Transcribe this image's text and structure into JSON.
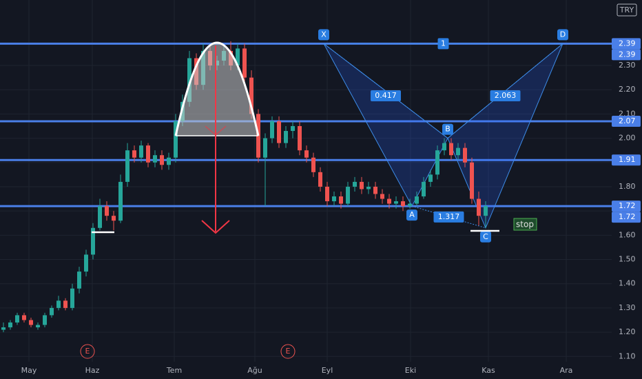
{
  "chart_data": {
    "type": "candlestick",
    "currency": "TRY",
    "x": [
      0,
      1,
      2,
      3,
      4,
      5,
      6,
      7,
      8,
      9,
      10,
      11,
      12,
      13,
      14,
      15,
      16,
      17,
      18,
      19,
      20,
      21,
      22,
      23,
      24,
      25,
      26,
      27,
      28,
      29,
      30,
      31,
      32,
      33,
      34,
      35,
      36,
      37,
      38,
      39,
      40,
      41,
      42,
      43,
      44,
      45,
      46,
      47,
      48,
      49,
      50,
      51,
      52,
      53,
      54,
      55,
      56,
      57,
      58,
      59,
      60,
      61,
      62,
      63,
      64,
      65,
      66,
      67,
      68,
      69,
      70
    ],
    "open": [
      1.21,
      1.22,
      1.24,
      1.27,
      1.25,
      1.22,
      1.23,
      1.27,
      1.3,
      1.33,
      1.3,
      1.38,
      1.45,
      1.52,
      1.63,
      1.72,
      1.68,
      1.66,
      1.82,
      1.95,
      1.92,
      1.97,
      1.9,
      1.93,
      1.89,
      1.92,
      2.07,
      2.15,
      2.33,
      2.22,
      2.36,
      2.3,
      2.32,
      2.36,
      2.3,
      2.37,
      2.25,
      2.1,
      1.92,
      2.0,
      2.07,
      1.98,
      2.03,
      2.05,
      1.95,
      1.92,
      1.86,
      1.8,
      1.74,
      1.76,
      1.73,
      1.8,
      1.82,
      1.79,
      1.8,
      1.77,
      1.75,
      1.73,
      1.74,
      1.72,
      1.73,
      1.76,
      1.82,
      1.85,
      1.95,
      1.98,
      1.93,
      1.96,
      1.9,
      1.75,
      1.68
    ],
    "high": [
      1.24,
      1.25,
      1.28,
      1.28,
      1.26,
      1.24,
      1.28,
      1.31,
      1.35,
      1.34,
      1.4,
      1.47,
      1.54,
      1.65,
      1.75,
      1.74,
      1.7,
      1.85,
      1.98,
      1.97,
      1.99,
      1.98,
      1.95,
      1.95,
      1.94,
      2.1,
      2.18,
      2.36,
      2.35,
      2.39,
      2.38,
      2.34,
      2.38,
      2.4,
      2.39,
      2.39,
      2.28,
      2.12,
      2.02,
      2.09,
      2.09,
      2.05,
      2.07,
      2.07,
      1.97,
      1.94,
      1.88,
      1.82,
      1.78,
      1.78,
      1.82,
      1.84,
      1.84,
      1.82,
      1.82,
      1.79,
      1.77,
      1.76,
      1.76,
      1.75,
      1.78,
      1.84,
      1.87,
      1.97,
      2.0,
      2.0,
      1.98,
      1.98,
      1.92,
      1.78,
      1.74
    ],
    "low": [
      1.2,
      1.21,
      1.23,
      1.24,
      1.22,
      1.21,
      1.22,
      1.26,
      1.29,
      1.29,
      1.29,
      1.36,
      1.43,
      1.5,
      1.62,
      1.66,
      1.62,
      1.65,
      1.8,
      1.9,
      1.9,
      1.88,
      1.88,
      1.87,
      1.87,
      1.9,
      2.05,
      2.13,
      2.2,
      2.2,
      2.28,
      2.28,
      2.3,
      2.28,
      2.28,
      2.23,
      2.08,
      1.9,
      1.72,
      1.98,
      1.96,
      1.96,
      2.0,
      1.93,
      1.9,
      1.84,
      1.78,
      1.72,
      1.72,
      1.71,
      1.72,
      1.78,
      1.77,
      1.77,
      1.75,
      1.73,
      1.71,
      1.71,
      1.7,
      1.71,
      1.72,
      1.75,
      1.8,
      1.83,
      1.93,
      1.91,
      1.91,
      1.88,
      1.73,
      1.64,
      1.63
    ],
    "close": [
      1.22,
      1.24,
      1.27,
      1.25,
      1.23,
      1.23,
      1.27,
      1.3,
      1.33,
      1.3,
      1.38,
      1.45,
      1.52,
      1.63,
      1.72,
      1.68,
      1.66,
      1.82,
      1.95,
      1.92,
      1.97,
      1.9,
      1.93,
      1.89,
      1.92,
      2.07,
      2.15,
      2.33,
      2.22,
      2.36,
      2.3,
      2.32,
      2.36,
      2.3,
      2.37,
      2.25,
      2.1,
      1.92,
      2.0,
      2.07,
      1.98,
      2.03,
      2.05,
      1.95,
      1.92,
      1.86,
      1.8,
      1.74,
      1.76,
      1.73,
      1.8,
      1.82,
      1.79,
      1.8,
      1.77,
      1.75,
      1.73,
      1.74,
      1.72,
      1.73,
      1.76,
      1.82,
      1.85,
      1.95,
      1.98,
      1.93,
      1.96,
      1.9,
      1.75,
      1.68,
      1.72
    ],
    "up_color": "#26a69a",
    "down_color": "#ef5350",
    "xlim": [
      -0.5,
      88.3
    ],
    "ylim": [
      1.078,
      2.57
    ],
    "xticks": [
      {
        "value": 3.7,
        "label": "May"
      },
      {
        "value": 12.9,
        "label": "Haz"
      },
      {
        "value": 24.8,
        "label": "Tem"
      },
      {
        "value": 36.5,
        "label": "Ağu"
      },
      {
        "value": 47,
        "label": "Eyl"
      },
      {
        "value": 59.1,
        "label": "Eki"
      },
      {
        "value": 70.4,
        "label": "Kas"
      },
      {
        "value": 81.7,
        "label": "Ara"
      }
    ],
    "yticks": [
      {
        "value": 1.1,
        "label": "1.10"
      },
      {
        "value": 1.2,
        "label": "1.20"
      },
      {
        "value": 1.3,
        "label": "1.30"
      },
      {
        "value": 1.4,
        "label": "1.40"
      },
      {
        "value": 1.5,
        "label": "1.50"
      },
      {
        "value": 1.6,
        "label": "1.60"
      },
      {
        "value": 1.7,
        "label": "1.70"
      },
      {
        "value": 1.8,
        "label": "1.80"
      },
      {
        "value": 1.9,
        "label": "1.90"
      },
      {
        "value": 2.0,
        "label": "2.00"
      },
      {
        "value": 2.1,
        "label": "2.10"
      },
      {
        "value": 2.2,
        "label": "2.20"
      },
      {
        "value": 2.3,
        "label": "2.30"
      }
    ],
    "grid": true,
    "levels": [
      2.39,
      2.07,
      1.91,
      1.72
    ],
    "level_color": "#4a7fe8",
    "badges": [
      2.39,
      1.72
    ],
    "pattern": {
      "color": "#3d8ce8",
      "points": [
        {
          "label": "X",
          "x": 46.5,
          "y": 2.39
        },
        {
          "label": "A",
          "x": 59.3,
          "y": 1.72
        },
        {
          "label": "B",
          "x": 64.5,
          "y": 2.0
        },
        {
          "label": "C",
          "x": 70,
          "y": 1.63
        },
        {
          "label": "D",
          "x": 81.2,
          "y": 2.39
        }
      ],
      "ratios": [
        "0.417",
        "2.063",
        "1.317",
        "1"
      ]
    },
    "earnings": [
      {
        "label": "E",
        "x": 12.2
      },
      {
        "label": "E",
        "x": 41.3
      }
    ],
    "note": "stop"
  }
}
